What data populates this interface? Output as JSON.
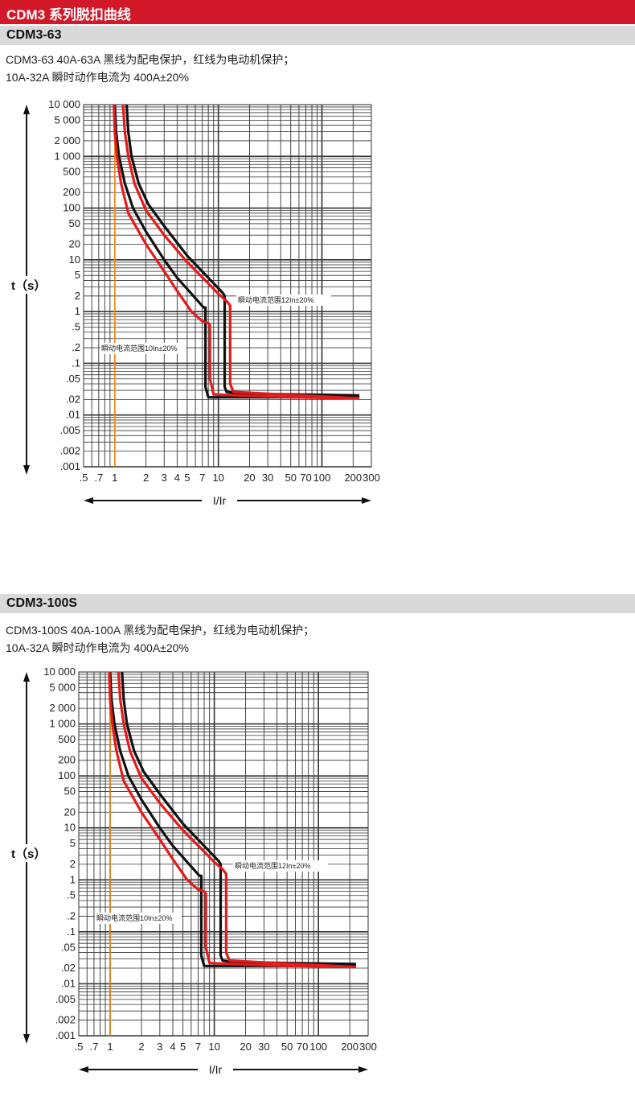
{
  "page": {
    "title": "CDM3 系列脱扣曲线"
  },
  "sections": [
    {
      "heading": "CDM3-63",
      "desc_line1": "CDM3-63   40A-63A 黑线为配电保护，红线为电动机保护；",
      "desc_line2": "10A-32A 瞬时动作电流为 400A±20%"
    },
    {
      "heading": "CDM3-100S",
      "desc_line1": "CDM3-100S   40A-100A 黑线为配电保护，红线为电动机保护；",
      "desc_line2": "10A-32A 瞬时动作电流为 400A±20%"
    }
  ],
  "chart_data": [
    {
      "type": "line",
      "chart": "CDM3-63",
      "xlabel": "I/Ir",
      "ylabel": "t（s）",
      "xscale": "log",
      "yscale": "log",
      "xlim": [
        0.5,
        300
      ],
      "ylim": [
        0.001,
        10000
      ],
      "x_ticks": [
        ".5",
        ".7",
        "1",
        "2",
        "3",
        "4",
        "5",
        "7",
        "10",
        "20",
        "30",
        "50",
        "70",
        "100",
        "200",
        "300"
      ],
      "y_ticks": [
        "10 000",
        "5 000",
        "2 000",
        "1 000",
        "500",
        "200",
        "100",
        "50",
        "20",
        "10",
        "5",
        "2",
        "1",
        ".5",
        ".2",
        ".1",
        ".05",
        ".02",
        ".01",
        ".005",
        ".002",
        ".001"
      ],
      "reference_line_x": 1,
      "annotations": [
        "瞬动电流范围12In±20%",
        "瞬动电流范围10In±20%"
      ],
      "series": [
        {
          "color": "#111111",
          "points": [
            [
              1.0,
              10000
            ],
            [
              1.03,
              3000
            ],
            [
              1.1,
              1000
            ],
            [
              1.25,
              300
            ],
            [
              1.5,
              100
            ],
            [
              2.0,
              35
            ],
            [
              3.0,
              10
            ],
            [
              4.0,
              4.5
            ],
            [
              5.5,
              2.2
            ],
            [
              7.2,
              1.2
            ],
            [
              7.5,
              1.2
            ],
            [
              7.5,
              0.035
            ],
            [
              8.0,
              0.022
            ],
            [
              12,
              0.022
            ],
            [
              100,
              0.022
            ],
            [
              230,
              0.022
            ]
          ]
        },
        {
          "color": "#111111",
          "points": [
            [
              1.3,
              10000
            ],
            [
              1.35,
              3000
            ],
            [
              1.45,
              1000
            ],
            [
              1.7,
              300
            ],
            [
              2.1,
              120
            ],
            [
              3.0,
              45
            ],
            [
              5.0,
              12
            ],
            [
              8.0,
              4.5
            ],
            [
              11,
              2.3
            ],
            [
              11.5,
              2.0
            ],
            [
              11.5,
              0.035
            ],
            [
              12,
              0.028
            ],
            [
              16,
              0.026
            ],
            [
              230,
              0.024
            ]
          ]
        },
        {
          "color": "#e31b1b",
          "points": [
            [
              0.98,
              10000
            ],
            [
              1.0,
              3000
            ],
            [
              1.05,
              1000
            ],
            [
              1.15,
              300
            ],
            [
              1.35,
              80
            ],
            [
              2.0,
              20
            ],
            [
              3.0,
              6
            ],
            [
              4.0,
              2.5
            ],
            [
              5.5,
              1.0
            ],
            [
              7.0,
              0.65
            ],
            [
              8.0,
              0.6
            ],
            [
              8.3,
              0.55
            ],
            [
              8.3,
              0.05
            ],
            [
              9.0,
              0.025
            ],
            [
              50,
              0.022
            ],
            [
              230,
              0.021
            ]
          ]
        },
        {
          "color": "#e31b1b",
          "points": [
            [
              1.2,
              10000
            ],
            [
              1.25,
              3000
            ],
            [
              1.35,
              1000
            ],
            [
              1.55,
              300
            ],
            [
              2.0,
              90
            ],
            [
              3.0,
              30
            ],
            [
              5.0,
              9
            ],
            [
              8.0,
              3.5
            ],
            [
              10,
              2.2
            ],
            [
              12,
              1.6
            ],
            [
              13,
              1.3
            ],
            [
              13,
              0.04
            ],
            [
              14,
              0.028
            ],
            [
              40,
              0.025
            ],
            [
              230,
              0.021
            ]
          ]
        }
      ]
    },
    {
      "type": "line",
      "chart": "CDM3-100S",
      "xlabel": "I/Ir",
      "ylabel": "t（s）",
      "xscale": "log",
      "yscale": "log",
      "xlim": [
        0.5,
        300
      ],
      "ylim": [
        0.001,
        10000
      ],
      "x_ticks": [
        ".5",
        ".7",
        "1",
        "2",
        "3",
        "4",
        "5",
        "7",
        "10",
        "20",
        "30",
        "50",
        "70",
        "100",
        "200",
        "300"
      ],
      "y_ticks": [
        "10 000",
        "5 000",
        "2 000",
        "1 000",
        "500",
        "200",
        "100",
        "50",
        "20",
        "10",
        "5",
        "2",
        "1",
        ".5",
        ".2",
        ".1",
        ".05",
        ".02",
        ".01",
        ".005",
        ".002",
        ".001"
      ],
      "reference_line_x": 1,
      "annotations": [
        "瞬动电流范围12In±20%",
        "瞬动电流范围10In±20%"
      ],
      "series": [
        {
          "color": "#111111",
          "points": [
            [
              1.0,
              10000
            ],
            [
              1.03,
              3000
            ],
            [
              1.1,
              1000
            ],
            [
              1.25,
              300
            ],
            [
              1.5,
              100
            ],
            [
              2.0,
              35
            ],
            [
              3.0,
              10
            ],
            [
              4.0,
              4.5
            ],
            [
              5.5,
              2.2
            ],
            [
              7.2,
              1.2
            ],
            [
              7.5,
              1.2
            ],
            [
              7.5,
              0.035
            ],
            [
              8.0,
              0.022
            ],
            [
              12,
              0.022
            ],
            [
              100,
              0.022
            ],
            [
              230,
              0.022
            ]
          ]
        },
        {
          "color": "#111111",
          "points": [
            [
              1.3,
              10000
            ],
            [
              1.35,
              3000
            ],
            [
              1.45,
              1000
            ],
            [
              1.7,
              300
            ],
            [
              2.1,
              120
            ],
            [
              3.0,
              45
            ],
            [
              5.0,
              12
            ],
            [
              8.0,
              4.5
            ],
            [
              11,
              2.3
            ],
            [
              11.5,
              2.0
            ],
            [
              11.5,
              0.035
            ],
            [
              12,
              0.028
            ],
            [
              16,
              0.026
            ],
            [
              230,
              0.024
            ]
          ]
        },
        {
          "color": "#e31b1b",
          "points": [
            [
              0.98,
              10000
            ],
            [
              1.0,
              3000
            ],
            [
              1.05,
              1000
            ],
            [
              1.15,
              300
            ],
            [
              1.35,
              80
            ],
            [
              2.0,
              20
            ],
            [
              3.0,
              6
            ],
            [
              4.0,
              2.5
            ],
            [
              5.5,
              1.0
            ],
            [
              7.0,
              0.65
            ],
            [
              8.0,
              0.6
            ],
            [
              8.3,
              0.55
            ],
            [
              8.3,
              0.05
            ],
            [
              9.0,
              0.025
            ],
            [
              50,
              0.022
            ],
            [
              230,
              0.021
            ]
          ]
        },
        {
          "color": "#e31b1b",
          "points": [
            [
              1.2,
              10000
            ],
            [
              1.25,
              3000
            ],
            [
              1.35,
              1000
            ],
            [
              1.55,
              300
            ],
            [
              2.0,
              90
            ],
            [
              3.0,
              30
            ],
            [
              5.0,
              9
            ],
            [
              8.0,
              3.5
            ],
            [
              10,
              2.2
            ],
            [
              12,
              1.6
            ],
            [
              13,
              1.3
            ],
            [
              13,
              0.04
            ],
            [
              14,
              0.028
            ],
            [
              40,
              0.025
            ],
            [
              230,
              0.021
            ]
          ]
        }
      ]
    }
  ]
}
